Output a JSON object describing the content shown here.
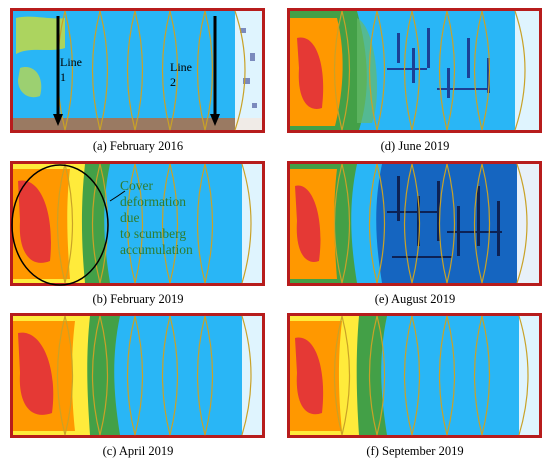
{
  "figure": {
    "panels": [
      {
        "id": "a",
        "caption": "(a) February 2016",
        "lines": [
          "Line 1",
          "Line 2"
        ]
      },
      {
        "id": "d",
        "caption": "(d) June 2019"
      },
      {
        "id": "b",
        "caption": "(b) February 2019",
        "annotation": [
          "Cover",
          "deformation due",
          "to scumberg",
          "accumulation"
        ]
      },
      {
        "id": "e",
        "caption": "(e) August 2019"
      },
      {
        "id": "c",
        "caption": "(c) April 2019"
      },
      {
        "id": "f",
        "caption": "(f) September 2019"
      }
    ]
  },
  "colors": {
    "background_blue": "#29b6f6",
    "border": "#b71c1c",
    "hot_red": "#e53935",
    "orange": "#ff9800",
    "yellow": "#fdd835",
    "green": "#43a047",
    "dark_blue": "#1a237e",
    "lens_outline": "#c9a227"
  }
}
